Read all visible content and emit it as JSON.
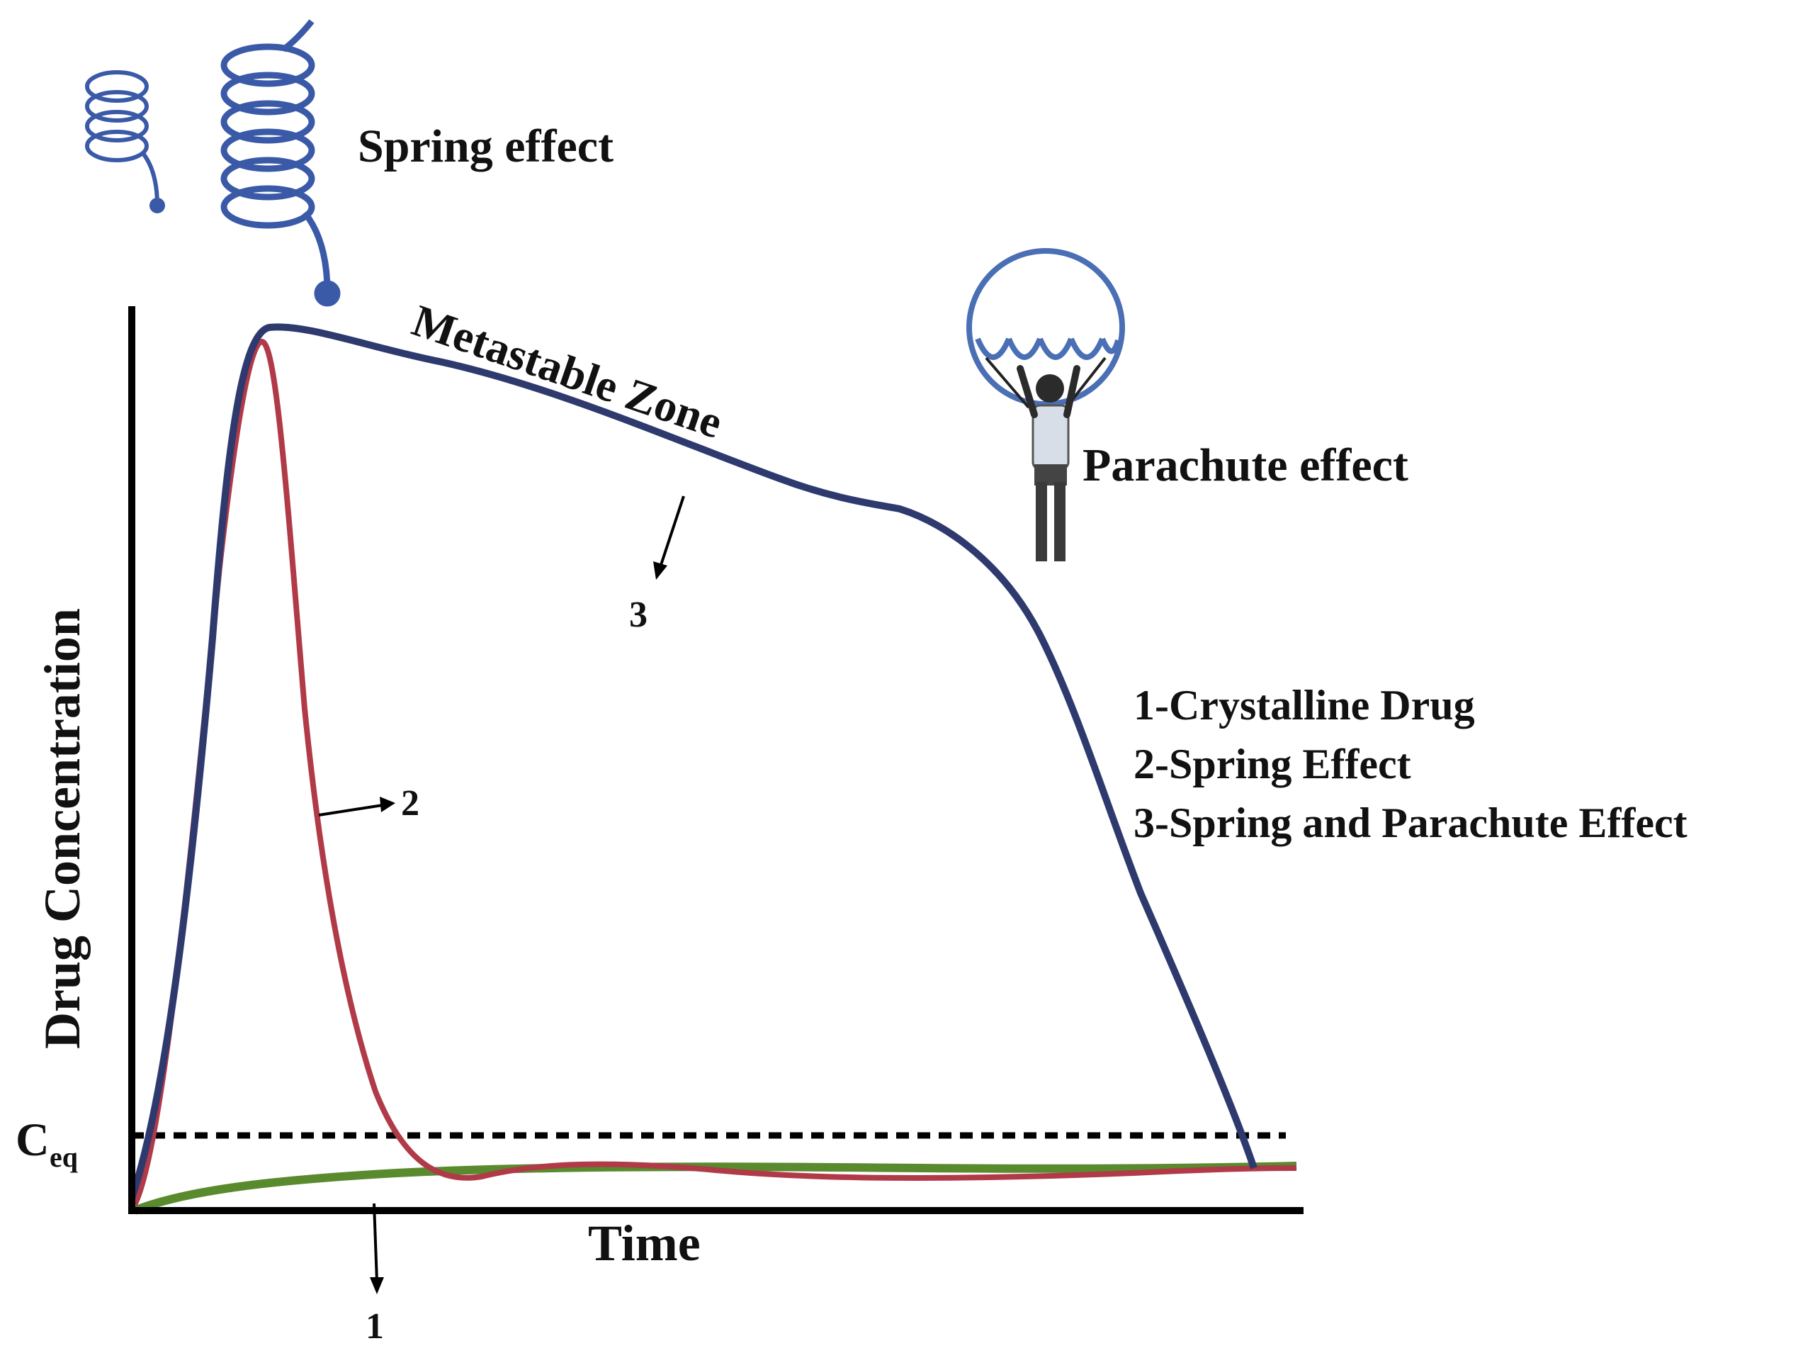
{
  "title": "",
  "axes": {
    "xlabel": "Time",
    "ylabel": "Drug Concentration",
    "ceq_main": "C",
    "ceq_sub": "eq"
  },
  "annotations": {
    "spring_effect": "Spring effect",
    "parachute_effect": "Parachute effect",
    "metastable_zone": "Metastable Zone",
    "curve_1_marker": "1",
    "curve_2_marker": "2",
    "curve_3_marker": "3"
  },
  "legend": {
    "item_1": "1-Crystalline Drug",
    "item_2": "2-Spring Effect",
    "item_3": "3-Spring and Parachute Effect"
  },
  "colors": {
    "spring_and_parachute_curve": "#2e3a6e",
    "spring_curve": "#b03a48",
    "crystalline_curve": "#5a8a2e",
    "spring_icon": "#3a5aa8",
    "parachute_icon": "#4a6fb5",
    "axis": "#000000"
  },
  "icons": [
    "small-spring-icon",
    "large-spring-icon",
    "parachute-icon",
    "person-icon"
  ]
}
